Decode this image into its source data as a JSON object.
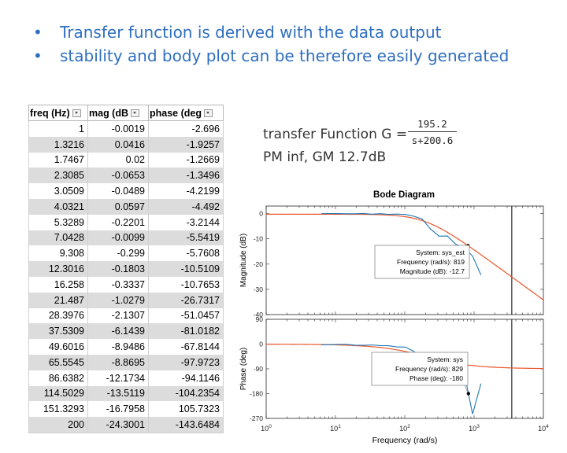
{
  "bullets": [
    "Transfer function is derived with the data output",
    "stability and body plot can be therefore easily generated"
  ],
  "table": {
    "headers": [
      "freq (Hz)",
      "mag (dB",
      "phase (deg"
    ],
    "rows": [
      [
        "1",
        "-0.0019",
        "-2.696"
      ],
      [
        "1.3216",
        "0.0416",
        "-1.9257"
      ],
      [
        "1.7467",
        "0.02",
        "-1.2669"
      ],
      [
        "2.3085",
        "-0.0653",
        "-1.3496"
      ],
      [
        "3.0509",
        "-0.0489",
        "-4.2199"
      ],
      [
        "4.0321",
        "0.0597",
        "-4.492"
      ],
      [
        "5.3289",
        "-0.2201",
        "-3.2144"
      ],
      [
        "7.0428",
        "-0.0099",
        "-5.5419"
      ],
      [
        "9.308",
        "-0.299",
        "-5.7608"
      ],
      [
        "12.3016",
        "-0.1803",
        "-10.5109"
      ],
      [
        "16.258",
        "-0.3337",
        "-10.7653"
      ],
      [
        "21.487",
        "-1.0279",
        "-26.7317"
      ],
      [
        "28.3976",
        "-2.1307",
        "-51.0457"
      ],
      [
        "37.5309",
        "-6.1439",
        "-81.0182"
      ],
      [
        "49.6016",
        "-8.9486",
        "-67.8144"
      ],
      [
        "65.5545",
        "-8.8695",
        "-97.9723"
      ],
      [
        "86.6382",
        "-12.1734",
        "-94.1146"
      ],
      [
        "114.5029",
        "-13.5119",
        "-104.2354"
      ],
      [
        "151.3293",
        "-16.7958",
        "105.7323"
      ],
      [
        "200",
        "-24.3001",
        "-143.6484"
      ]
    ]
  },
  "transfer": {
    "label": "transfer Function G =",
    "numerator": "195.2",
    "denominator": "s+200.6",
    "margins": "PM inf, GM 12.7dB"
  },
  "bode": {
    "title": "Bode Diagram",
    "mag_ylabel": "Magnitude (dB)",
    "phase_ylabel": "Phase (deg)",
    "xlabel": "Frequency  (rad/s)",
    "mag_yticks": [
      "0",
      "-10",
      "-20",
      "-30",
      "-40"
    ],
    "phase_yticks": [
      "90",
      "0",
      "-90",
      "-180",
      "-270"
    ],
    "x_exponents": [
      "0",
      "1",
      "2",
      "3",
      "4"
    ],
    "x_base": "10",
    "colors": {
      "fit": "#e8562a",
      "measured": "#1f77b4",
      "axes": "#262626",
      "vline": "#000000"
    },
    "mag_tip": [
      "System: sys_est",
      "Frequency (rad/s): 819",
      "Magnitude (dB): -12.7"
    ],
    "phase_tip": [
      "System: sys",
      "Frequency (rad/s): 829",
      "Phase (deg): -180"
    ]
  },
  "chart_data": [
    {
      "type": "line",
      "title": "Bode Diagram",
      "subplot": "magnitude",
      "xlabel": "Frequency  (rad/s)",
      "ylabel": "Magnitude (dB)",
      "xscale": "log",
      "xlim": [
        1,
        10000
      ],
      "ylim": [
        -40,
        3
      ],
      "series": [
        {
          "name": "sys_est",
          "x": [
            1,
            10,
            100,
            200,
            400,
            819,
            2000,
            5000,
            10000
          ],
          "y": [
            0,
            0,
            -0.1,
            -0.8,
            -2.7,
            -12.7,
            -19.9,
            -27.9,
            -33.9
          ]
        },
        {
          "name": "sys",
          "x": [
            6.28,
            8.3,
            11,
            14.6,
            19.2,
            25.3,
            33.5,
            44.3,
            58.5,
            77.3,
            102,
            135,
            178,
            236,
            312,
            412,
            545,
            720,
            951,
            1257
          ],
          "y": [
            0,
            0.04,
            0.02,
            -0.07,
            -0.05,
            0.06,
            -0.22,
            -0.01,
            -0.3,
            -0.18,
            -0.33,
            -1.03,
            -2.13,
            -6.14,
            -8.95,
            -8.87,
            -12.17,
            -13.51,
            -16.8,
            -24.3
          ]
        }
      ],
      "annotations": [
        "System: sys_est",
        "Frequency (rad/s): 819",
        "Magnitude (dB): -12.7"
      ],
      "vertical_line_x": 3500
    },
    {
      "type": "line",
      "subplot": "phase",
      "xlabel": "Frequency  (rad/s)",
      "ylabel": "Phase (deg)",
      "xscale": "log",
      "xlim": [
        1,
        10000
      ],
      "ylim": [
        -270,
        90
      ],
      "series": [
        {
          "name": "sys_est",
          "x": [
            1,
            10,
            100,
            200,
            1000,
            10000
          ],
          "y": [
            -0.3,
            -2.9,
            -26.5,
            -45,
            -78.7,
            -88.9
          ]
        },
        {
          "name": "sys",
          "x": [
            6.28,
            8.3,
            11,
            14.6,
            19.2,
            25.3,
            33.5,
            44.3,
            58.5,
            77.3,
            102,
            135,
            178,
            236,
            312,
            412,
            545,
            720,
            829,
            951,
            1257
          ],
          "y": [
            -2.7,
            -1.93,
            -1.27,
            -1.35,
            -4.22,
            -4.49,
            -3.21,
            -5.54,
            -5.76,
            -10.51,
            -10.77,
            -26.73,
            -51.05,
            -81.02,
            -67.81,
            -97.97,
            -94.11,
            -104.24,
            -180,
            -254.27,
            -143.65
          ]
        }
      ],
      "annotations": [
        "System: sys",
        "Frequency (rad/s): 829",
        "Phase (deg): -180"
      ],
      "vertical_line_x": 3500
    }
  ]
}
